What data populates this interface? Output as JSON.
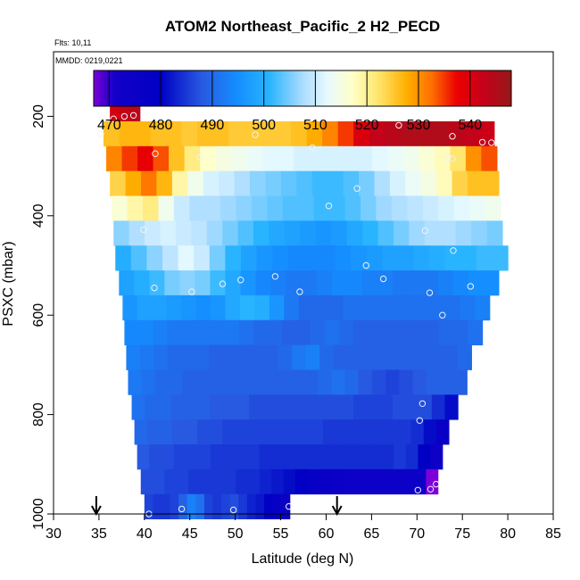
{
  "chart_data": {
    "type": "heatmap",
    "title": "ATOM2 Northeast_Pacific_2 H2_PECD",
    "flights_label": "Flts: 10,11",
    "date_label": "MMDD: 0219,0221",
    "xlabel": "Latitude (deg N)",
    "ylabel": "PSXC (mbar)",
    "xlim": [
      30,
      85
    ],
    "ylim": [
      1000,
      70
    ],
    "x_ticks": [
      "30",
      "35",
      "40",
      "45",
      "50",
      "55",
      "60",
      "65",
      "70",
      "75",
      "80",
      "85"
    ],
    "y_ticks": [
      "200",
      "400",
      "600",
      "800",
      "1000"
    ],
    "colorbar": {
      "range": [
        467,
        548
      ],
      "ticks": [
        "470",
        "480",
        "490",
        "500",
        "510",
        "520",
        "530",
        "540"
      ]
    },
    "arrows_lat": [
      34.7,
      61.2
    ],
    "bin_height_mbar": 50,
    "rows": [
      {
        "p": 185,
        "lat_min": 36.2,
        "lat_max": 39.5,
        "values": [
          541,
          543,
          544
        ]
      },
      {
        "p": 235,
        "lat_min": 35.5,
        "lat_max": 78.5,
        "values": [
          526,
          527,
          527,
          526,
          526,
          525,
          526,
          526,
          525,
          525,
          525,
          525,
          526,
          528,
          531,
          535,
          540,
          543,
          544,
          545,
          545,
          545,
          544,
          543,
          542
        ]
      },
      {
        "p": 285,
        "lat_min": 35.8,
        "lat_max": 78.8,
        "values": [
          531,
          535,
          538,
          534,
          526,
          521,
          517,
          515,
          514,
          513,
          512,
          512,
          511,
          511,
          511,
          511,
          511,
          512,
          513,
          514,
          516,
          518,
          522,
          530,
          534
        ]
      },
      {
        "p": 335,
        "lat_min": 36.2,
        "lat_max": 79.0,
        "values": [
          524,
          528,
          532,
          527,
          519,
          514,
          511,
          510,
          508,
          506,
          505,
          504,
          503,
          502,
          502,
          503,
          505,
          508,
          511,
          513,
          515,
          518,
          524,
          526,
          526
        ]
      },
      {
        "p": 385,
        "lat_min": 36.4,
        "lat_max": 79.2,
        "values": [
          516,
          519,
          521,
          514,
          510,
          508,
          508,
          507,
          506,
          505,
          504,
          503,
          503,
          502,
          502,
          503,
          505,
          507,
          508,
          509,
          510,
          511,
          512,
          513,
          514
        ]
      },
      {
        "p": 435,
        "lat_min": 36.6,
        "lat_max": 79.4,
        "values": [
          506,
          508,
          510,
          511,
          510,
          509,
          507,
          505,
          503,
          501,
          499,
          498,
          497,
          496,
          497,
          499,
          501,
          503,
          505,
          507,
          508,
          508,
          507,
          506,
          505
        ]
      },
      {
        "p": 485,
        "lat_min": 36.8,
        "lat_max": 80.0,
        "values": [
          500,
          503,
          506,
          509,
          512,
          510,
          505,
          501,
          498,
          496,
          495,
          494,
          494,
          494,
          495,
          496,
          497,
          498,
          498,
          499,
          500,
          501,
          501,
          502,
          502
        ]
      },
      {
        "p": 535,
        "lat_min": 37.2,
        "lat_max": 79.0,
        "values": [
          498,
          500,
          502,
          505,
          506,
          505,
          502,
          499,
          496,
          494,
          493,
          492,
          492,
          493,
          494,
          494,
          493,
          493,
          492,
          492,
          492,
          493,
          494,
          495,
          495
        ]
      },
      {
        "p": 585,
        "lat_min": 37.6,
        "lat_max": 78.0,
        "values": [
          496,
          498,
          498,
          497,
          496,
          495,
          496,
          499,
          501,
          500,
          496,
          492,
          490,
          490,
          490,
          491,
          491,
          491,
          491,
          491,
          491,
          491,
          491,
          492,
          493
        ]
      },
      {
        "p": 635,
        "lat_min": 37.8,
        "lat_max": 77.2,
        "values": [
          494,
          494,
          493,
          492,
          492,
          492,
          492,
          492,
          491,
          490,
          490,
          489,
          489,
          490,
          491,
          490,
          489,
          489,
          489,
          489,
          489,
          489,
          490,
          490,
          491
        ]
      },
      {
        "p": 685,
        "lat_min": 38.0,
        "lat_max": 76.0,
        "values": [
          493,
          492,
          491,
          490,
          490,
          490,
          489,
          489,
          489,
          489,
          489,
          490,
          492,
          493,
          490,
          489,
          489,
          489,
          489,
          489,
          489,
          489,
          489,
          489,
          490
        ]
      },
      {
        "p": 735,
        "lat_min": 38.2,
        "lat_max": 75.5,
        "values": [
          492,
          491,
          490,
          490,
          489,
          489,
          489,
          489,
          489,
          489,
          489,
          489,
          489,
          489,
          490,
          491,
          490,
          488,
          487,
          486,
          487,
          488,
          489,
          489,
          489
        ]
      },
      {
        "p": 785,
        "lat_min": 38.6,
        "lat_max": 74.5,
        "values": [
          491,
          490,
          490,
          489,
          489,
          489,
          488,
          488,
          488,
          487,
          487,
          487,
          487,
          487,
          487,
          487,
          487,
          486,
          486,
          486,
          487,
          487,
          487,
          484,
          481
        ]
      },
      {
        "p": 835,
        "lat_min": 38.9,
        "lat_max": 73.5,
        "values": [
          490,
          489,
          489,
          488,
          488,
          487,
          487,
          486,
          486,
          486,
          486,
          486,
          486,
          486,
          486,
          485,
          485,
          485,
          485,
          485,
          485,
          485,
          484,
          481,
          476
        ]
      },
      {
        "p": 885,
        "lat_min": 39.2,
        "lat_max": 72.8,
        "values": [
          488,
          487,
          487,
          486,
          486,
          486,
          485,
          485,
          485,
          485,
          484,
          484,
          484,
          484,
          484,
          484,
          484,
          484,
          484,
          484,
          484,
          485,
          484,
          480,
          474
        ]
      },
      {
        "p": 935,
        "lat_min": 39.6,
        "lat_max": 72.3,
        "values": [
          487,
          487,
          486,
          486,
          485,
          485,
          485,
          485,
          484,
          484,
          483,
          482,
          481,
          479,
          477,
          476,
          475,
          474,
          474,
          474,
          474,
          474,
          474,
          474,
          465
        ]
      },
      {
        "p": 985,
        "lat_min": 40.0,
        "lat_max": 56.0,
        "values": [
          486,
          485,
          485,
          486,
          489,
          493,
          491,
          486,
          485,
          486,
          487,
          485,
          483,
          482,
          479,
          477,
          475
        ]
      }
    ],
    "samples": [
      {
        "lat": 35.2,
        "p": 235
      },
      {
        "lat": 36.6,
        "p": 205
      },
      {
        "lat": 37.8,
        "p": 200
      },
      {
        "lat": 38.8,
        "p": 198
      },
      {
        "lat": 41.2,
        "p": 275
      },
      {
        "lat": 46.1,
        "p": 282
      },
      {
        "lat": 52.2,
        "p": 237
      },
      {
        "lat": 58.5,
        "p": 263
      },
      {
        "lat": 63.4,
        "p": 345
      },
      {
        "lat": 60.3,
        "p": 380
      },
      {
        "lat": 68.0,
        "p": 218
      },
      {
        "lat": 73.9,
        "p": 240
      },
      {
        "lat": 77.2,
        "p": 252
      },
      {
        "lat": 78.2,
        "p": 253
      },
      {
        "lat": 73.4,
        "p": 283
      },
      {
        "lat": 73.9,
        "p": 285
      },
      {
        "lat": 70.9,
        "p": 430
      },
      {
        "lat": 74.0,
        "p": 470
      },
      {
        "lat": 39.9,
        "p": 428
      },
      {
        "lat": 64.4,
        "p": 500
      },
      {
        "lat": 66.3,
        "p": 527
      },
      {
        "lat": 54.4,
        "p": 522
      },
      {
        "lat": 50.6,
        "p": 529
      },
      {
        "lat": 48.6,
        "p": 537
      },
      {
        "lat": 45.2,
        "p": 553
      },
      {
        "lat": 57.1,
        "p": 553
      },
      {
        "lat": 41.1,
        "p": 545
      },
      {
        "lat": 71.4,
        "p": 555
      },
      {
        "lat": 75.9,
        "p": 542
      },
      {
        "lat": 72.8,
        "p": 600
      },
      {
        "lat": 70.6,
        "p": 778
      },
      {
        "lat": 70.3,
        "p": 812
      },
      {
        "lat": 70.1,
        "p": 952
      },
      {
        "lat": 71.5,
        "p": 950
      },
      {
        "lat": 72.1,
        "p": 940
      },
      {
        "lat": 40.5,
        "p": 1000
      },
      {
        "lat": 44.1,
        "p": 990
      },
      {
        "lat": 49.8,
        "p": 992
      },
      {
        "lat": 55.9,
        "p": 985
      }
    ]
  }
}
